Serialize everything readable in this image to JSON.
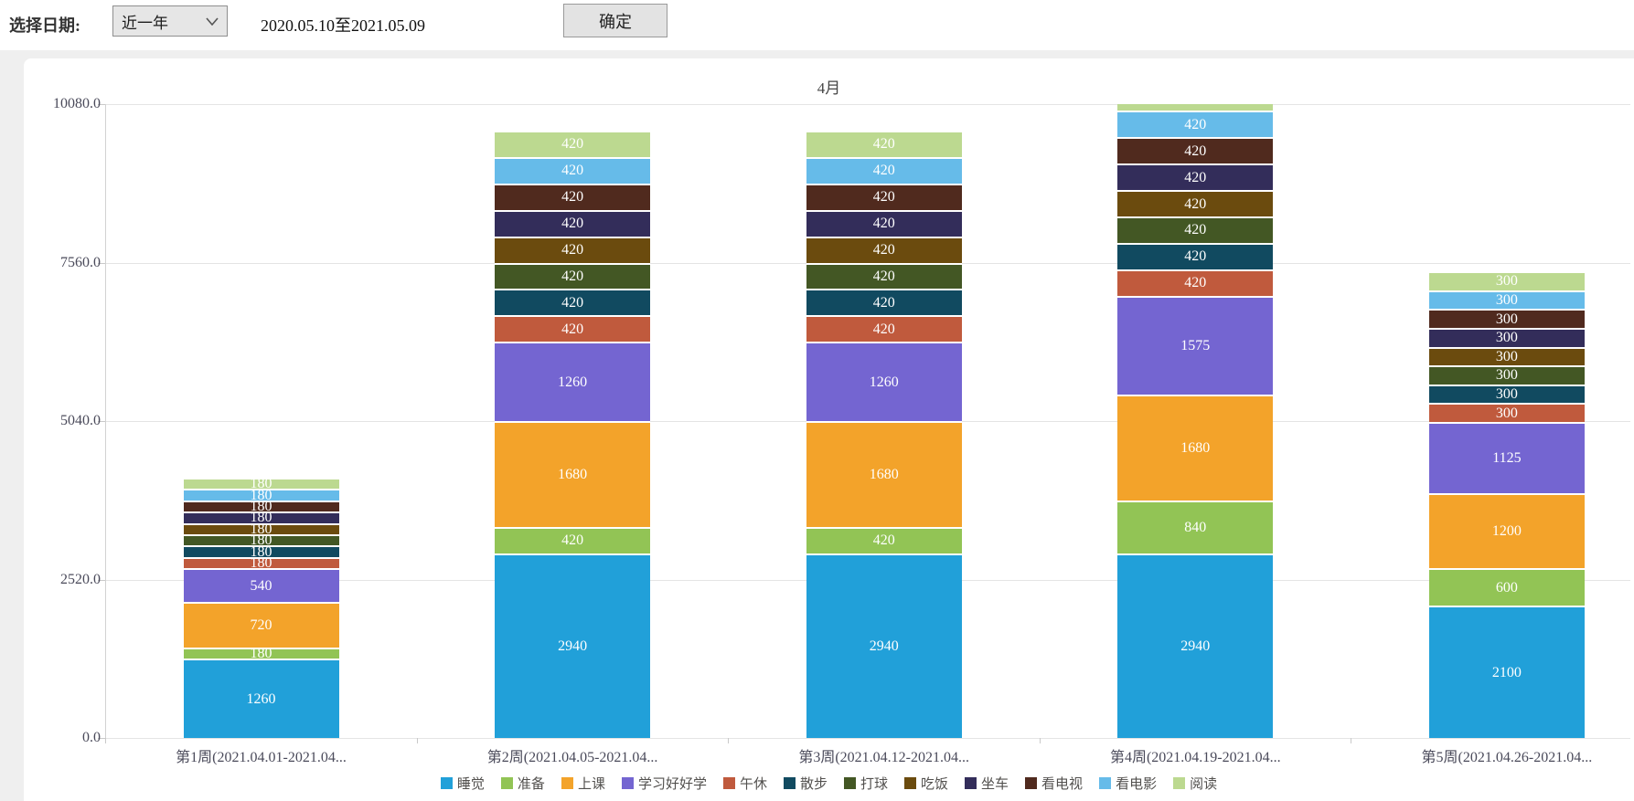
{
  "toolbar": {
    "date_label": "选择日期:",
    "range_select": {
      "value": "近一年"
    },
    "date_range": "2020.05.10至2021.05.09",
    "confirm_label": "确定"
  },
  "chart_data": {
    "type": "bar",
    "stacked": true,
    "title": "4月",
    "categories": [
      "第1周(2021.04.01-2021.04...",
      "第2周(2021.04.05-2021.04...",
      "第3周(2021.04.12-2021.04...",
      "第4周(2021.04.19-2021.04...",
      "第5周(2021.04.26-2021.04..."
    ],
    "series": [
      {
        "key": "sleep",
        "name": "睡觉",
        "color": "#21a0d9",
        "values": [
          1260,
          2940,
          2940,
          2940,
          2100
        ]
      },
      {
        "key": "prepare",
        "name": "准备",
        "color": "#92c455",
        "values": [
          180,
          420,
          420,
          840,
          600
        ]
      },
      {
        "key": "class",
        "name": "上课",
        "color": "#f3a32a",
        "values": [
          720,
          1680,
          1680,
          1680,
          1200
        ]
      },
      {
        "key": "study-hard",
        "name": "学习好好学",
        "color": "#7465d1",
        "values": [
          540,
          1260,
          1260,
          1575,
          1125
        ]
      },
      {
        "key": "noon-break",
        "name": "午休",
        "color": "#c05a3d",
        "values": [
          180,
          420,
          420,
          420,
          300
        ]
      },
      {
        "key": "walk",
        "name": "散步",
        "color": "#114a60",
        "values": [
          180,
          420,
          420,
          420,
          300
        ]
      },
      {
        "key": "play-ball",
        "name": "打球",
        "color": "#435724",
        "values": [
          180,
          420,
          420,
          420,
          300
        ]
      },
      {
        "key": "meal",
        "name": "吃饭",
        "color": "#6b4b0e",
        "values": [
          180,
          420,
          420,
          420,
          300
        ]
      },
      {
        "key": "commute",
        "name": "坐车",
        "color": "#332d5a",
        "values": [
          180,
          420,
          420,
          420,
          300
        ]
      },
      {
        "key": "watch-tv",
        "name": "看电视",
        "color": "#502a1e",
        "values": [
          180,
          420,
          420,
          420,
          300
        ]
      },
      {
        "key": "movie",
        "name": "看电影",
        "color": "#66bbe9",
        "values": [
          180,
          420,
          420,
          420,
          300
        ]
      },
      {
        "key": "reading",
        "name": "阅读",
        "color": "#bcd990",
        "values": [
          180,
          420,
          420,
          420,
          300
        ]
      }
    ],
    "ylim": [
      0,
      10080
    ],
    "yticks": [
      "0.0",
      "2520.0",
      "5040.0",
      "7560.0",
      "10080.0"
    ],
    "grid": true,
    "legend_position": "bottom"
  }
}
